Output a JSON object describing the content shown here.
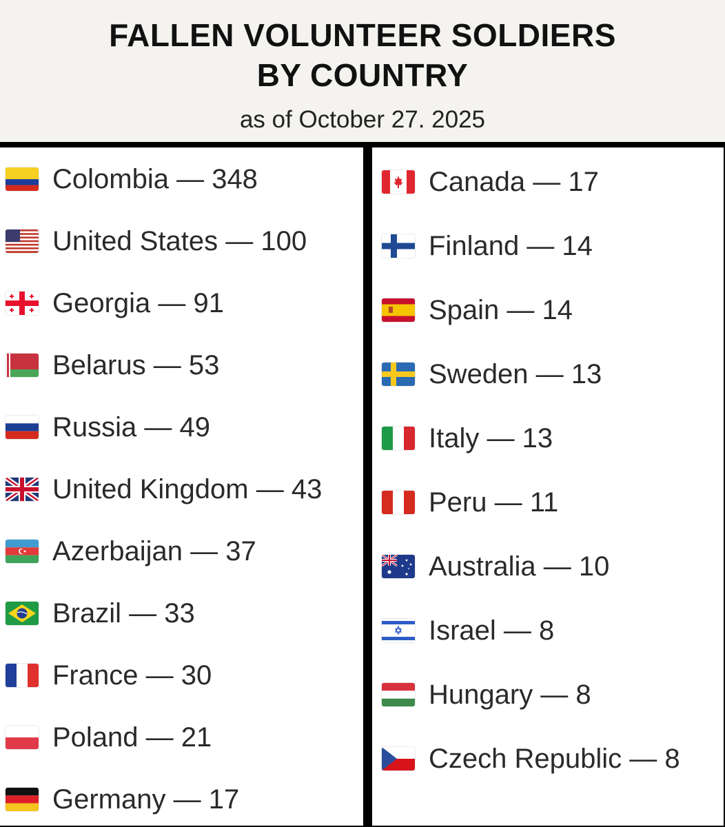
{
  "header": {
    "title_line1": "FALLEN VOLUNTEER SOLDIERS",
    "title_line2": "BY COUNTRY",
    "subtitle": "as of October 27. 2025"
  },
  "left_list": [
    {
      "label": "Colombia — 348",
      "flag": "colombia-flag"
    },
    {
      "label": "United States — 100",
      "flag": "united-states-flag"
    },
    {
      "label": "Georgia — 91",
      "flag": "georgia-flag"
    },
    {
      "label": "Belarus — 53",
      "flag": "belarus-flag"
    },
    {
      "label": "Russia — 49",
      "flag": "russia-flag"
    },
    {
      "label": "United Kingdom — 43",
      "flag": "united-kingdom-flag"
    },
    {
      "label": "Azerbaijan — 37",
      "flag": "azerbaijan-flag"
    },
    {
      "label": "Brazil — 33",
      "flag": "brazil-flag"
    },
    {
      "label": "France — 30",
      "flag": "france-flag"
    },
    {
      "label": "Poland — 21",
      "flag": "poland-flag"
    },
    {
      "label": "Germany — 17",
      "flag": "germany-flag"
    }
  ],
  "right_list": [
    {
      "label": "Canada — 17",
      "flag": "canada-flag"
    },
    {
      "label": "Finland — 14",
      "flag": "finland-flag"
    },
    {
      "label": "Spain — 14",
      "flag": "spain-flag"
    },
    {
      "label": "Sweden — 13",
      "flag": "sweden-flag"
    },
    {
      "label": "Italy — 13",
      "flag": "italy-flag"
    },
    {
      "label": "Peru — 11",
      "flag": "peru-flag"
    },
    {
      "label": "Australia — 10",
      "flag": "australia-flag"
    },
    {
      "label": "Israel — 8",
      "flag": "israel-flag"
    },
    {
      "label": "Hungary — 8",
      "flag": "hungary-flag"
    },
    {
      "label": "Czech Republic — 8",
      "flag": "czech-republic-flag"
    }
  ]
}
